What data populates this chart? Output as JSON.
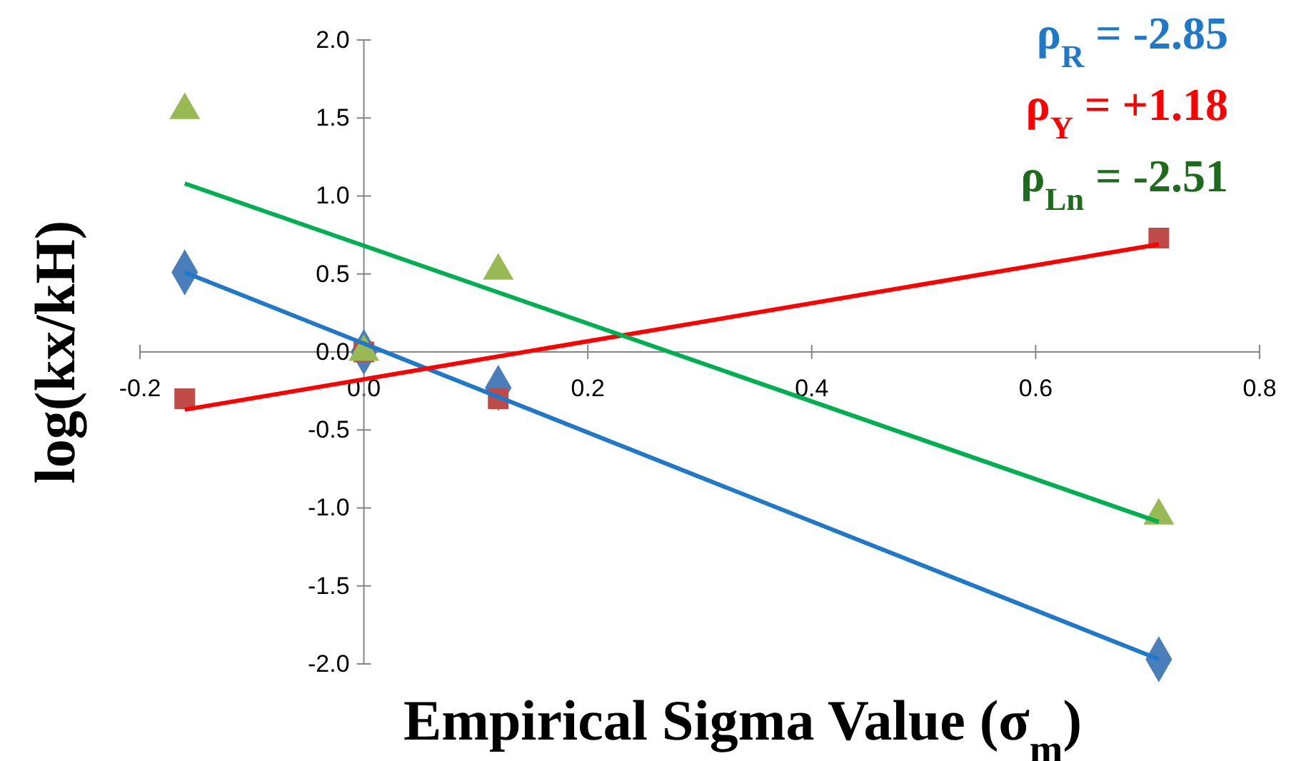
{
  "chart_data": {
    "type": "scatter",
    "xlabel": "Empirical Sigma Value (σ$_{m}$)",
    "ylabel": "log(kx/kH)",
    "xlim": [
      -0.2,
      0.8
    ],
    "ylim": [
      -2,
      2
    ],
    "xticks": [
      {
        "value": -0.2,
        "label": "-0.2"
      },
      {
        "value": 0,
        "label": "0.0"
      },
      {
        "value": 0.2,
        "label": "0.2"
      },
      {
        "value": 0.4,
        "label": "0.4"
      },
      {
        "value": 0.6,
        "label": "0.6"
      },
      {
        "value": 0.8,
        "label": "0.8"
      }
    ],
    "yticks": [
      {
        "value": -2,
        "label": "-2.0"
      },
      {
        "value": -1.5,
        "label": "-1.5"
      },
      {
        "value": -1,
        "label": "-1.0"
      },
      {
        "value": -0.5,
        "label": "-0.5"
      },
      {
        "value": 0,
        "label": "0.0"
      },
      {
        "value": 0.5,
        "label": "0.5"
      },
      {
        "value": 1,
        "label": "1.0"
      },
      {
        "value": 1.5,
        "label": "1.5"
      },
      {
        "value": 2,
        "label": "2.0"
      }
    ],
    "grid": false,
    "series": [
      {
        "type": "line",
        "marker": "none",
        "color": "#1f78c8",
        "x": [
          -0.16,
          0.71
        ],
        "values": [
          0.51,
          -1.97
        ]
      },
      {
        "type": "line",
        "marker": "none",
        "color": "#ff0000",
        "x": [
          -0.16,
          0.71
        ],
        "values": [
          -0.37,
          0.69
        ]
      },
      {
        "type": "line",
        "marker": "none",
        "color": "#00b050",
        "x": [
          -0.16,
          0.71
        ],
        "values": [
          1.08,
          -1.09
        ]
      },
      {
        "marker": "diamond",
        "color": "#4a7ebb",
        "x": [
          -0.16,
          0,
          0.12,
          0.71
        ],
        "values": [
          0.51,
          0,
          -0.23,
          -1.97
        ]
      },
      {
        "marker": "square",
        "color": "#be4b48",
        "x": [
          -0.16,
          0,
          0.12,
          0.71
        ],
        "values": [
          -0.3,
          0,
          -0.3,
          0.73
        ]
      },
      {
        "marker": "triangle",
        "color": "#98b954",
        "x": [
          -0.16,
          0,
          0.12,
          0.71
        ],
        "values": [
          1.55,
          0,
          0.52,
          -1.05
        ]
      }
    ],
    "annotations": [
      "ρ$_{R}$ = -2.85",
      "ρ$_{Y}$ = +1.18",
      "ρ$_{Ln}$ = -2.51"
    ]
  }
}
